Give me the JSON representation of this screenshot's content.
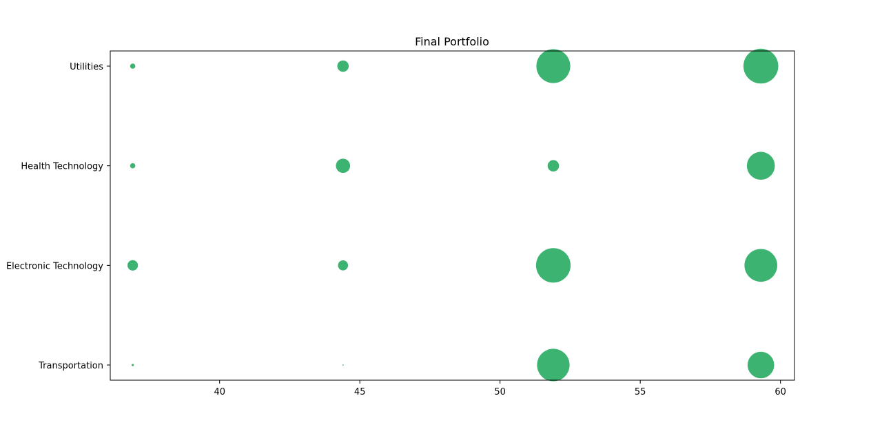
{
  "chart_data": {
    "type": "scatter",
    "title": "Final Portfolio",
    "xlabel": "",
    "ylabel": "",
    "xlim": [
      36.1,
      60.5
    ],
    "x_ticks": [
      40,
      45,
      50,
      55,
      60
    ],
    "x_tick_labels": [
      "40",
      "45",
      "50",
      "55",
      "60"
    ],
    "categories": [
      "Transportation",
      "Electronic Technology",
      "Health Technology",
      "Utilities"
    ],
    "grid": false,
    "legend": "none",
    "marker_color": "#3cb371",
    "points": [
      {
        "x": 36.9,
        "y": "Utilities",
        "size": 0.18
      },
      {
        "x": 44.4,
        "y": "Utilities",
        "size": 0.85
      },
      {
        "x": 51.9,
        "y": "Utilities",
        "size": 7.5
      },
      {
        "x": 59.3,
        "y": "Utilities",
        "size": 7.9
      },
      {
        "x": 36.9,
        "y": "Health Technology",
        "size": 0.18
      },
      {
        "x": 44.4,
        "y": "Health Technology",
        "size": 1.3
      },
      {
        "x": 51.9,
        "y": "Health Technology",
        "size": 0.85
      },
      {
        "x": 59.3,
        "y": "Health Technology",
        "size": 5.1
      },
      {
        "x": 36.9,
        "y": "Electronic Technology",
        "size": 0.72
      },
      {
        "x": 44.4,
        "y": "Electronic Technology",
        "size": 0.65
      },
      {
        "x": 51.9,
        "y": "Electronic Technology",
        "size": 7.8
      },
      {
        "x": 59.3,
        "y": "Electronic Technology",
        "size": 7.0
      },
      {
        "x": 36.9,
        "y": "Transportation",
        "size": 0.03
      },
      {
        "x": 44.4,
        "y": "Transportation",
        "size": 0.01
      },
      {
        "x": 51.9,
        "y": "Transportation",
        "size": 6.9
      },
      {
        "x": 59.3,
        "y": "Transportation",
        "size": 4.6
      }
    ]
  }
}
